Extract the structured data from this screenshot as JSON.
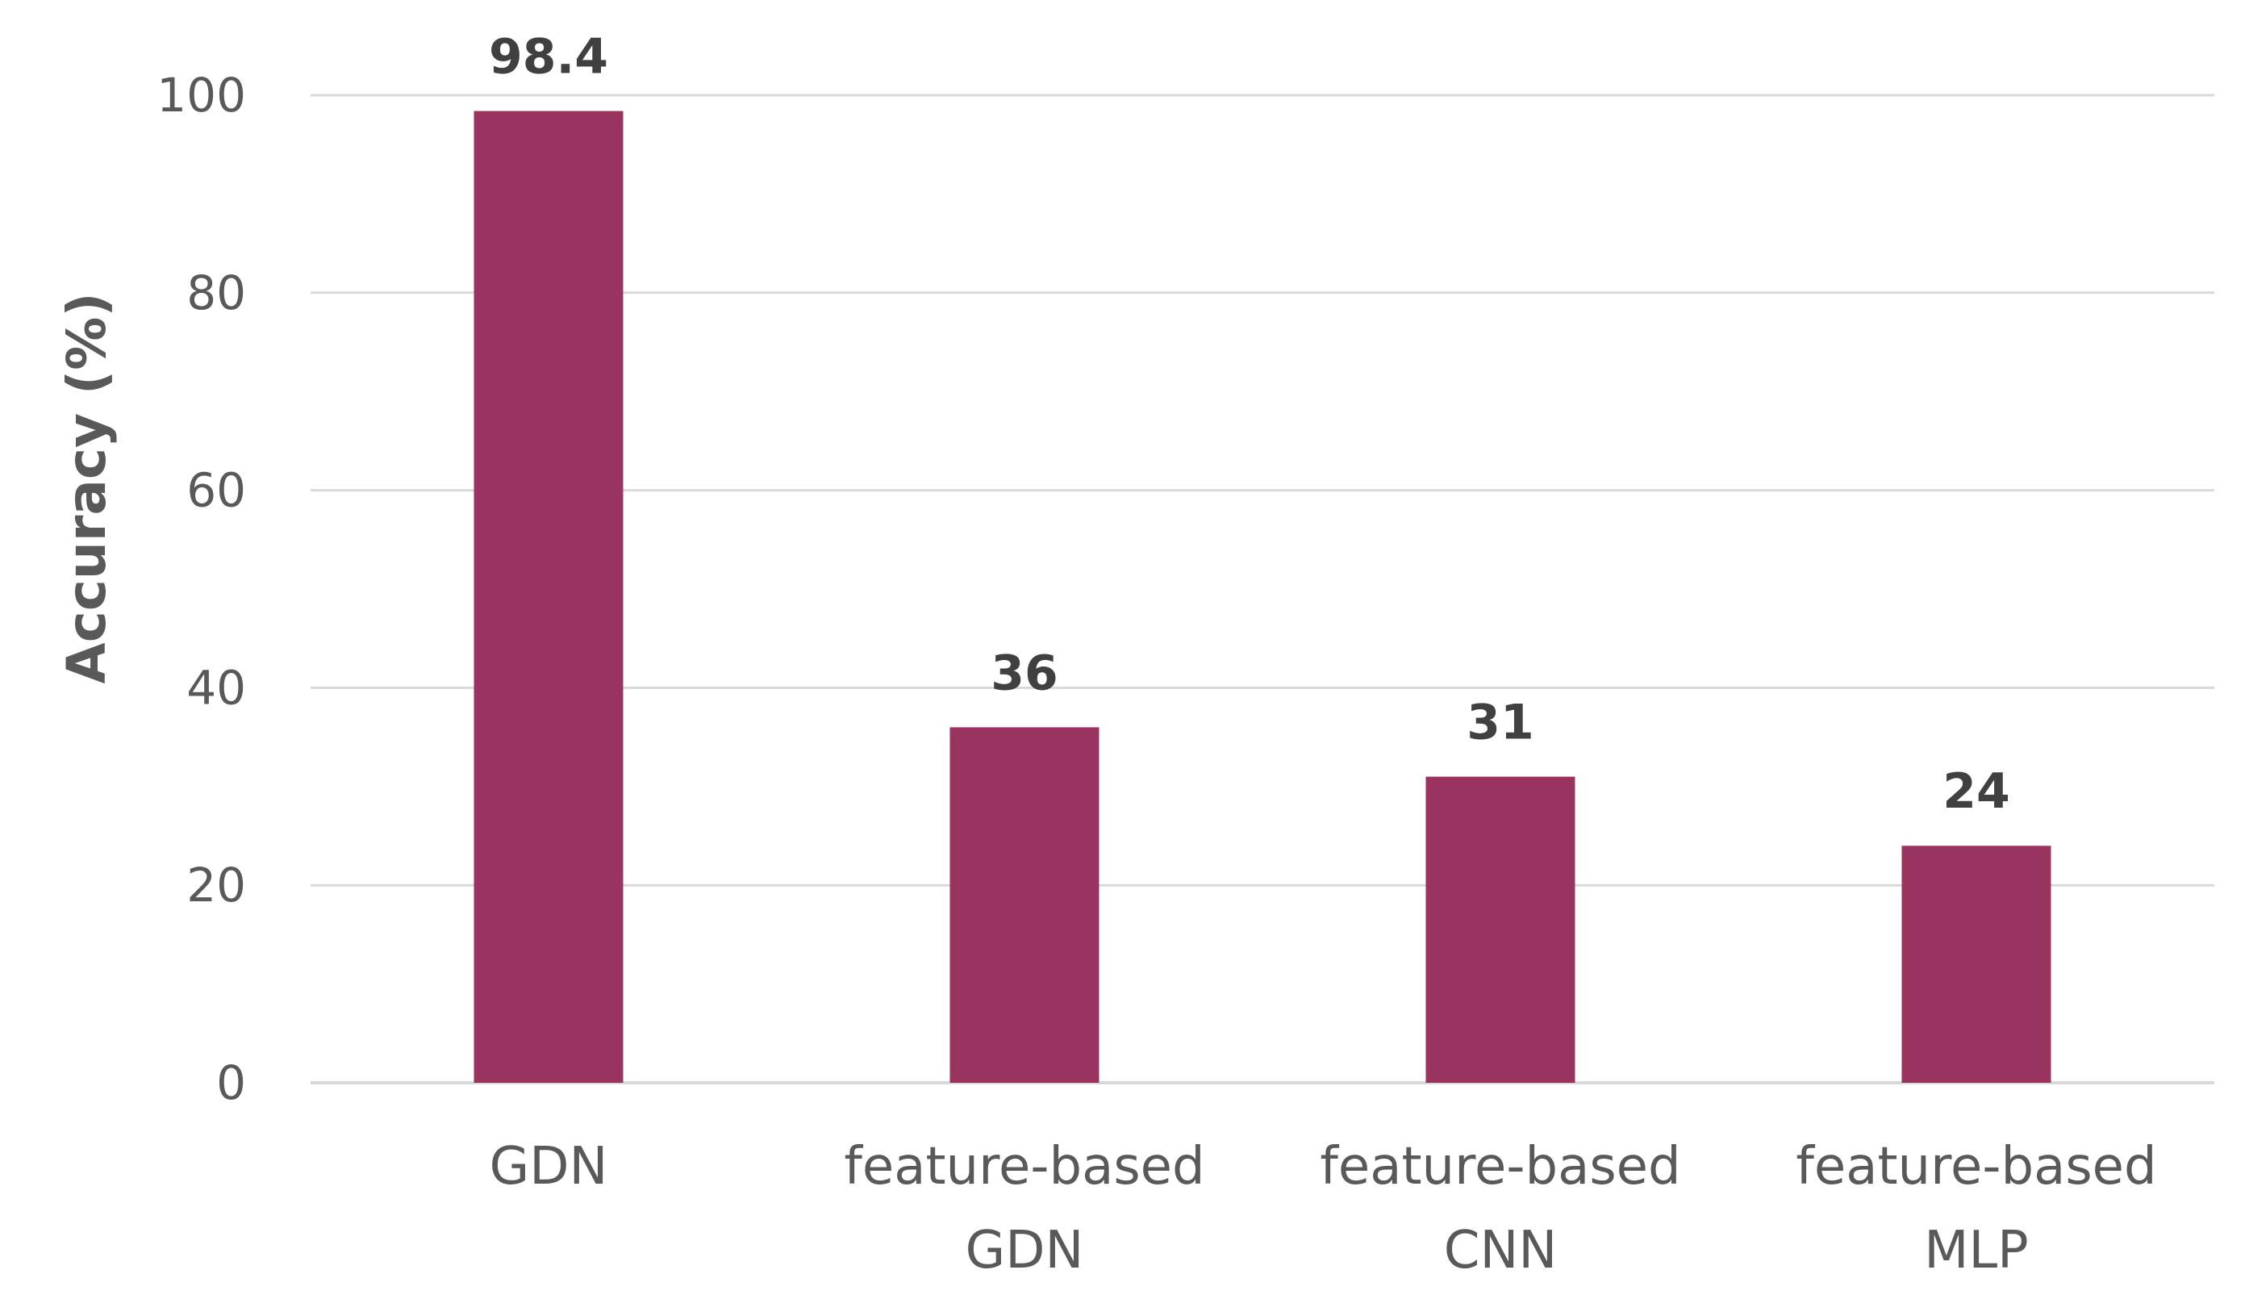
{
  "chart_data": {
    "type": "bar",
    "categories": [
      [
        "GDN"
      ],
      [
        "feature-based",
        "GDN"
      ],
      [
        "feature-based",
        "CNN"
      ],
      [
        "feature-based",
        "MLP"
      ]
    ],
    "values": [
      98.4,
      36,
      31,
      24
    ],
    "data_labels": [
      "98.4",
      "36",
      "31",
      "24"
    ],
    "title": "",
    "xlabel": "",
    "ylabel": "Accuracy (%)",
    "ylim": [
      0,
      100
    ],
    "yticks": [
      0,
      20,
      40,
      60,
      80,
      100
    ],
    "grid": true,
    "legend": "none",
    "bar_color": "#993461"
  }
}
